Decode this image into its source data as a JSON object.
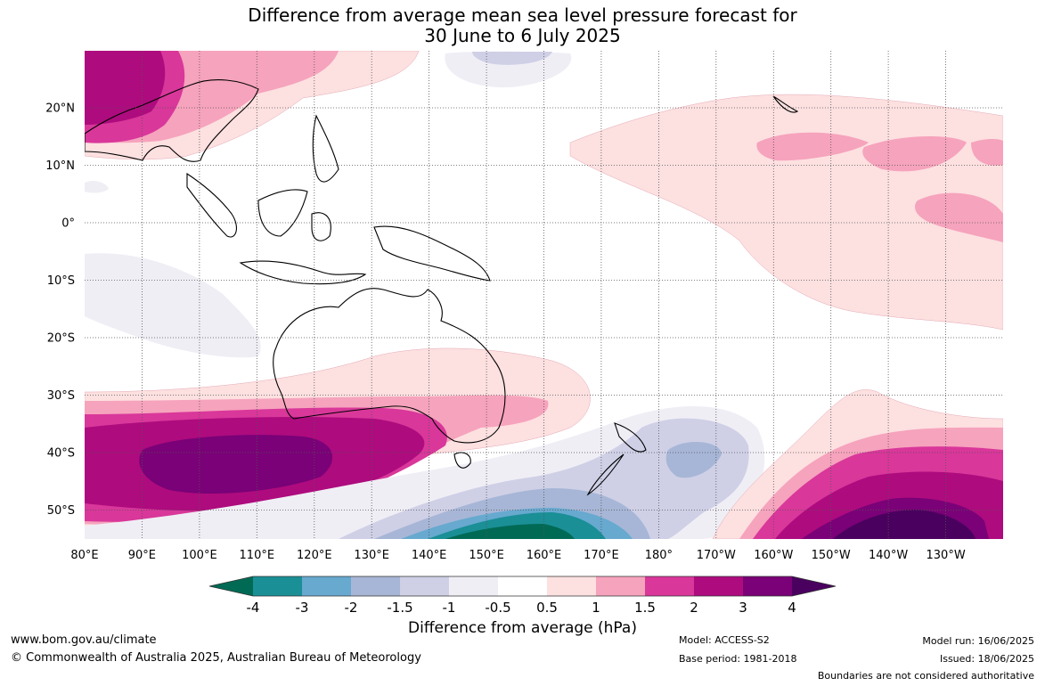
{
  "title_line1": "Difference from average mean sea level pressure forecast for",
  "title_line2": "30 June to 6 July 2025",
  "map": {
    "lon_labels": [
      "80°E",
      "90°E",
      "100°E",
      "110°E",
      "120°E",
      "130°E",
      "140°E",
      "150°E",
      "160°E",
      "170°E",
      "180°",
      "170°W",
      "160°W",
      "150°W",
      "140°W",
      "130°W"
    ],
    "lat_labels": [
      "20°N",
      "10°N",
      "0°",
      "10°S",
      "20°S",
      "30°S",
      "40°S",
      "50°S"
    ],
    "lon_range": [
      80,
      240
    ],
    "lat_range": [
      -55,
      30
    ],
    "gridlines": "dotted"
  },
  "colorbar": {
    "label": "Difference from average (hPa)",
    "tick_labels": [
      "-4",
      "-3",
      "-2",
      "-1.5",
      "-1",
      "-0.5",
      "0.5",
      "1",
      "1.5",
      "2",
      "3",
      "4"
    ],
    "colors": [
      "#006a55",
      "#1a8f96",
      "#67a9cf",
      "#a7b6d6",
      "#cfd0e6",
      "#f0eef5",
      "#ffffff",
      "#fde0e0",
      "#f6a3bd",
      "#d9379a",
      "#ae0b7e",
      "#7a0177",
      "#4a005e"
    ],
    "extend": "both"
  },
  "footer": {
    "url": "www.bom.gov.au/climate",
    "copyright": "© Commonwealth of Australia 2025, Australian Bureau of Meteorology",
    "model": "Model: ACCESS-S2",
    "base_period": "Base period: 1981-2018",
    "model_run": "Model run: 16/06/2025",
    "issued": "Issued: 18/06/2025",
    "boundaries_note": "Boundaries are not considered authoritative"
  }
}
